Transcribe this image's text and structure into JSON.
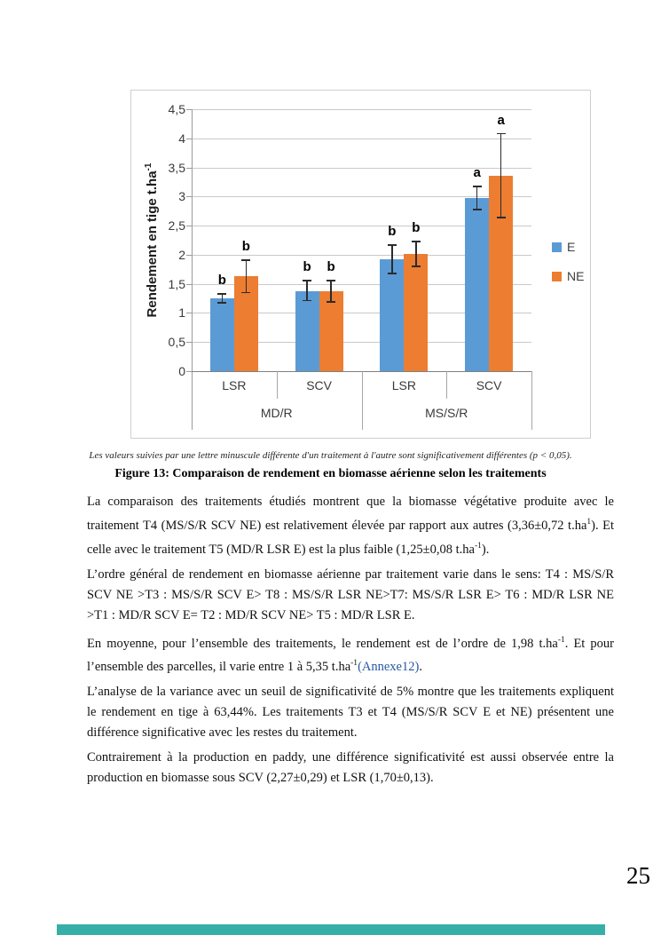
{
  "page": {
    "number": "25"
  },
  "footer": {
    "accent_color": "#36AFA8"
  },
  "figure": {
    "note": "Les valeurs suivies par une lettre minuscule différente d'un traitement à l'autre sont significativement différentes (p < 0,05).",
    "caption": "Figure 13: Comparaison de rendement en biomasse aérienne selon les traitements"
  },
  "chart_data": {
    "type": "bar",
    "title": "",
    "ylabel": "Rendement en tige t.ha",
    "ylabel_sup": "-1",
    "ylim": [
      0,
      4.5
    ],
    "ytick_step": 0.5,
    "ytick_labels": [
      "0",
      "0,5",
      "1",
      "1,5",
      "2",
      "2,5",
      "3",
      "3,5",
      "4",
      "4,5"
    ],
    "grid": true,
    "legend_position": "right",
    "series": [
      {
        "name": "E",
        "color": "#5B9BD5"
      },
      {
        "name": "NE",
        "color": "#ED7D31"
      }
    ],
    "groups": [
      {
        "label": "MD/R",
        "categories": [
          {
            "label": "LSR",
            "bars": [
              {
                "series": "E",
                "value": 1.25,
                "error": 0.08,
                "letter": "b"
              },
              {
                "series": "NE",
                "value": 1.63,
                "error": 0.28,
                "letter": "b"
              }
            ]
          },
          {
            "label": "SCV",
            "bars": [
              {
                "series": "E",
                "value": 1.38,
                "error": 0.17,
                "letter": "b"
              },
              {
                "series": "NE",
                "value": 1.37,
                "error": 0.18,
                "letter": "b"
              }
            ]
          }
        ]
      },
      {
        "label": "MS/S/R",
        "categories": [
          {
            "label": "LSR",
            "bars": [
              {
                "series": "E",
                "value": 1.92,
                "error": 0.24,
                "letter": "b"
              },
              {
                "series": "NE",
                "value": 2.01,
                "error": 0.21,
                "letter": "b"
              }
            ]
          },
          {
            "label": "SCV",
            "bars": [
              {
                "series": "E",
                "value": 2.97,
                "error": 0.2,
                "letter": "a"
              },
              {
                "series": "NE",
                "value": 3.36,
                "error": 0.72,
                "letter": "a"
              }
            ]
          }
        ]
      }
    ]
  },
  "body": {
    "paragraphs": [
      [
        {
          "kind": "text",
          "t": "La comparaison des traitements étudiés montrent que la biomasse végétative produite avec le traitement T4 (MS/S/R SCV NE) est relativement élevée par rapport aux autres (3,36±0,72 t.ha"
        },
        {
          "kind": "sup",
          "t": "1"
        },
        {
          "kind": "text",
          "t": "). Et celle avec le traitement T5 (MD/R LSR E) est la plus faible (1,25±0,08 t.ha"
        },
        {
          "kind": "sup",
          "t": "-1"
        },
        {
          "kind": "text",
          "t": ")."
        }
      ],
      [
        {
          "kind": "text",
          "t": "L’ordre général de rendement en biomasse aérienne par traitement varie dans le sens: T4 : MS/S/R SCV NE >T3 : MS/S/R SCV E> T8 : MS/S/R LSR NE>T7: MS/S/R LSR E> T6 : MD/R LSR NE >T1 : MD/R SCV E= T2 : MD/R SCV NE> T5 : MD/R LSR E."
        }
      ],
      [
        {
          "kind": "text",
          "t": "En moyenne, pour l’ensemble des traitements, le rendement est de l’ordre de 1,98 t.ha"
        },
        {
          "kind": "sup",
          "t": "-1"
        },
        {
          "kind": "text",
          "t": ". Et pour l’ensemble des parcelles, il varie entre 1 à 5,35 t.ha"
        },
        {
          "kind": "sup",
          "t": "-1"
        },
        {
          "kind": "link",
          "t": "(Annexe12)"
        },
        {
          "kind": "text",
          "t": "."
        }
      ],
      [
        {
          "kind": "text",
          "t": "L’analyse de la variance avec un seuil de significativité de 5% montre que les traitements expliquent le rendement en tige à 63,44%. Les traitements T3 et T4 (MS/S/R SCV E et NE) présentent une différence significative avec les restes du traitement."
        }
      ],
      [
        {
          "kind": "text",
          "t": "Contrairement à la production en paddy, une différence significativité est aussi observée entre la production en biomasse sous SCV (2,27±0,29) et LSR (1,70±0,13)."
        }
      ]
    ]
  }
}
